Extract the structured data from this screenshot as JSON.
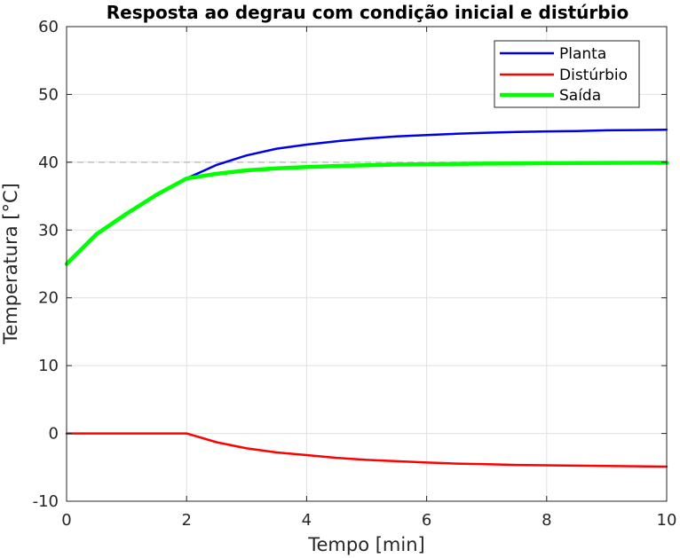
{
  "chart_data": {
    "type": "line",
    "title": "Resposta ao degrau com condição inicial e distúrbio",
    "xlabel": "Tempo [min]",
    "ylabel": "Temperatura [°C]",
    "xlim": [
      0,
      10
    ],
    "ylim": [
      -10,
      60
    ],
    "xticks": [
      "0",
      "2",
      "4",
      "6",
      "8",
      "10"
    ],
    "yticks": [
      "-10",
      "0",
      "10",
      "20",
      "30",
      "40",
      "50",
      "60"
    ],
    "grid": true,
    "legend_position": "top-right",
    "reference_line": {
      "y": 40,
      "style": "dashed",
      "color": "#c0c0c0"
    },
    "x": [
      0,
      0.5,
      1,
      1.5,
      2,
      2.5,
      3,
      3.5,
      4,
      4.5,
      5,
      5.5,
      6,
      6.5,
      7,
      7.5,
      8,
      8.5,
      9,
      9.5,
      10
    ],
    "series": [
      {
        "name": "Planta",
        "color": "#0000e6",
        "values": [
          25.0,
          29.4,
          32.4,
          35.2,
          37.6,
          39.6,
          41.0,
          42.0,
          42.6,
          43.1,
          43.5,
          43.8,
          44.0,
          44.2,
          44.35,
          44.45,
          44.55,
          44.6,
          44.7,
          44.75,
          44.8
        ]
      },
      {
        "name": "Distúrbio",
        "color": "#ff0000",
        "values": [
          0,
          0,
          0,
          0,
          0,
          -1.3,
          -2.2,
          -2.8,
          -3.2,
          -3.6,
          -3.9,
          -4.1,
          -4.3,
          -4.45,
          -4.55,
          -4.65,
          -4.7,
          -4.75,
          -4.8,
          -4.85,
          -4.9
        ]
      },
      {
        "name": "Saída",
        "color": "#00ff00",
        "values": [
          25.0,
          29.4,
          32.4,
          35.2,
          37.6,
          38.3,
          38.8,
          39.1,
          39.3,
          39.45,
          39.55,
          39.65,
          39.7,
          39.75,
          39.8,
          39.83,
          39.86,
          39.88,
          39.9,
          39.92,
          39.93
        ]
      }
    ]
  }
}
